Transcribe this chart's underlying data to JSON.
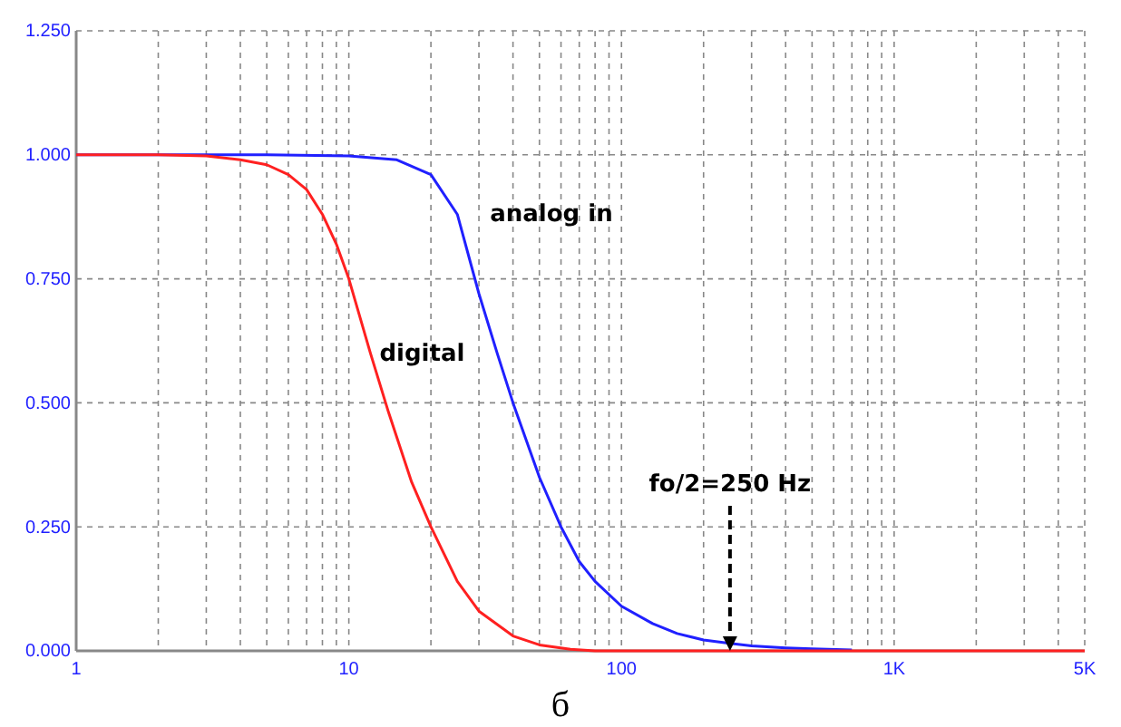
{
  "chart_data": {
    "type": "line",
    "log": "x",
    "grid": true,
    "marker": "none",
    "line_style": "solid",
    "xlim": [
      1,
      5000
    ],
    "xticks": [
      {
        "value": 1,
        "label": "1"
      },
      {
        "value": 2,
        "label": null
      },
      {
        "value": 3,
        "label": null
      },
      {
        "value": 4,
        "label": null
      },
      {
        "value": 5,
        "label": null
      },
      {
        "value": 6,
        "label": null
      },
      {
        "value": 7,
        "label": null
      },
      {
        "value": 8,
        "label": null
      },
      {
        "value": 9,
        "label": null
      },
      {
        "value": 10,
        "label": "10"
      },
      {
        "value": 20,
        "label": null
      },
      {
        "value": 30,
        "label": null
      },
      {
        "value": 40,
        "label": null
      },
      {
        "value": 50,
        "label": null
      },
      {
        "value": 60,
        "label": null
      },
      {
        "value": 70,
        "label": null
      },
      {
        "value": 80,
        "label": null
      },
      {
        "value": 90,
        "label": null
      },
      {
        "value": 100,
        "label": "100"
      },
      {
        "value": 200,
        "label": null
      },
      {
        "value": 300,
        "label": null
      },
      {
        "value": 400,
        "label": null
      },
      {
        "value": 500,
        "label": null
      },
      {
        "value": 600,
        "label": null
      },
      {
        "value": 700,
        "label": null
      },
      {
        "value": 800,
        "label": null
      },
      {
        "value": 900,
        "label": null
      },
      {
        "value": 1000,
        "label": "1K"
      },
      {
        "value": 2000,
        "label": null
      },
      {
        "value": 3000,
        "label": null
      },
      {
        "value": 4000,
        "label": null
      },
      {
        "value": 5000,
        "label": "5K"
      }
    ],
    "ylim": [
      0,
      1.25
    ],
    "yticks": [
      {
        "value": 0,
        "label": "0.000"
      },
      {
        "value": 0.25,
        "label": "0.250"
      },
      {
        "value": 0.5,
        "label": "0.500"
      },
      {
        "value": 0.75,
        "label": "0.750"
      },
      {
        "value": 1,
        "label": "1.000"
      },
      {
        "value": 1.25,
        "label": "1.250"
      }
    ],
    "series": [
      {
        "name": "analog in",
        "color": "#2020ff",
        "x": [
          1,
          5,
          10,
          15,
          20,
          25,
          30,
          35,
          40,
          50,
          60,
          70,
          80,
          100,
          130,
          160,
          200,
          250,
          300,
          400,
          500,
          700
        ],
        "values": [
          1,
          1,
          0.998,
          0.99,
          0.96,
          0.88,
          0.72,
          0.6,
          0.5,
          0.35,
          0.25,
          0.18,
          0.14,
          0.09,
          0.055,
          0.035,
          0.022,
          0.015,
          0.01,
          0.006,
          0.004,
          0.002
        ]
      },
      {
        "name": "digital",
        "color": "#ff2020",
        "x": [
          1,
          2,
          3,
          4,
          5,
          6,
          7,
          8,
          9,
          10,
          12,
          14,
          17,
          20,
          25,
          30,
          40,
          50,
          65,
          80,
          100,
          1000,
          5000
        ],
        "values": [
          1,
          1,
          0.998,
          0.99,
          0.98,
          0.96,
          0.93,
          0.88,
          0.82,
          0.75,
          0.6,
          0.48,
          0.34,
          0.25,
          0.14,
          0.08,
          0.03,
          0.012,
          0.003,
          0,
          0,
          0,
          0
        ]
      }
    ],
    "annotations": [
      {
        "text": "fo/2=250 Hz",
        "x": 250,
        "y": 0
      },
      "б"
    ]
  }
}
